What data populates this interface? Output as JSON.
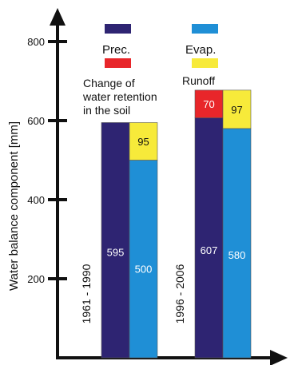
{
  "chart_data": {
    "type": "bar",
    "stacked": true,
    "ylabel": "Water balance component  [mm]",
    "yticks": [
      200,
      400,
      600,
      800
    ],
    "ylim": [
      0,
      880
    ],
    "groups": [
      {
        "label": "1961 - 1990",
        "columns": [
          {
            "segments": [
              {
                "series": "Prec.",
                "value": 595,
                "label": "595"
              }
            ]
          },
          {
            "segments": [
              {
                "series": "Evap.",
                "value": 500,
                "label": "500"
              },
              {
                "series": "Runoff",
                "value": 95,
                "label": "95"
              }
            ]
          }
        ]
      },
      {
        "label": "1996 - 2006",
        "columns": [
          {
            "segments": [
              {
                "series": "Prec.",
                "value": 607,
                "label": "607"
              },
              {
                "series": "Change of water retention in the soil",
                "value": 70,
                "label": "70"
              }
            ]
          },
          {
            "segments": [
              {
                "series": "Evap.",
                "value": 580,
                "label": "580"
              },
              {
                "series": "Runoff",
                "value": 97,
                "label": "97"
              }
            ]
          }
        ]
      }
    ],
    "series": [
      {
        "name": "Prec.",
        "color": "#2e2472"
      },
      {
        "name": "Evap.",
        "color": "#1f8fd6"
      },
      {
        "name": "Change of water retention in the soil",
        "color": "#e8262a"
      },
      {
        "name": "Runoff",
        "color": "#f7ea3a"
      }
    ],
    "legend": {
      "prec": "Prec.",
      "evap": "Evap.",
      "retention_line1": "Change of",
      "retention_line2": "water retention",
      "retention_line3": "in the soil",
      "runoff": "Runoff"
    }
  }
}
